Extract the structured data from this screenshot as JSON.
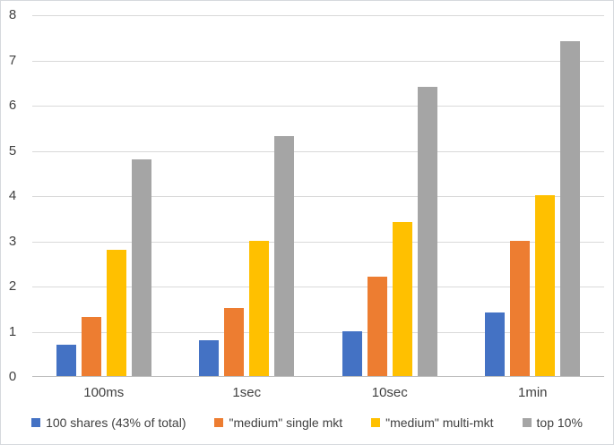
{
  "chart_data": {
    "type": "bar",
    "title": "",
    "categories": [
      "100ms",
      "1sec",
      "10sec",
      "1min"
    ],
    "series": [
      {
        "name": "100 shares (43% of total)",
        "color": "#4472C4",
        "values": [
          0.7,
          0.8,
          1.0,
          1.4
        ]
      },
      {
        "name": "\"medium\" single mkt",
        "color": "#ED7D31",
        "values": [
          1.3,
          1.5,
          2.2,
          3.0
        ]
      },
      {
        "name": "\"medium\" multi-mkt",
        "color": "#FFC000",
        "values": [
          2.8,
          3.0,
          3.4,
          4.0
        ]
      },
      {
        "name": "top 10%",
        "color": "#A5A5A5",
        "values": [
          4.8,
          5.3,
          6.4,
          7.4
        ]
      }
    ],
    "xlabel": "",
    "ylabel": "",
    "ylim": [
      0,
      8
    ],
    "yticks": [
      0,
      1,
      2,
      3,
      4,
      5,
      6,
      7,
      8
    ],
    "grid": true,
    "legend_position": "bottom",
    "colors": {
      "gridline": "#d9d9d9",
      "axis_line": "#bfbfbf",
      "tick_text": "#404040",
      "background": "#ffffff",
      "border": "#d6d9dd"
    }
  }
}
